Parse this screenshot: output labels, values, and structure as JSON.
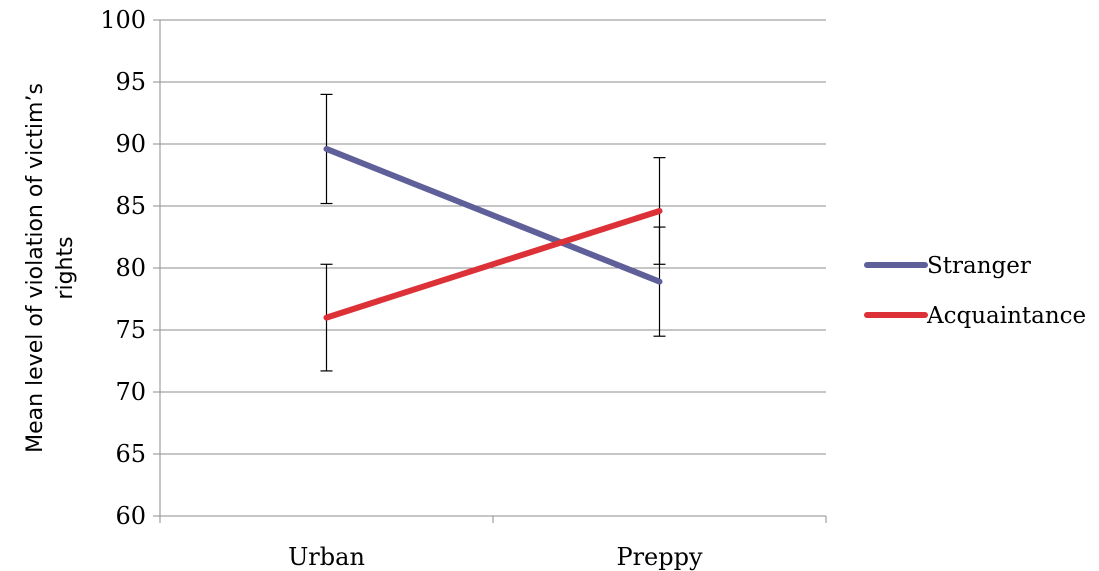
{
  "chart_data": {
    "type": "line",
    "title": "",
    "xlabel": "",
    "ylabel_lines": [
      "Mean level of violation of victim’s",
      "rights"
    ],
    "categories": [
      "Urban",
      "Preppy"
    ],
    "ylim": [
      60,
      100
    ],
    "yticks": [
      60,
      65,
      70,
      75,
      80,
      85,
      90,
      95,
      100
    ],
    "grid": "horizontal",
    "legend_position": "right",
    "series": [
      {
        "name": "Stranger",
        "color": "#5f5f99",
        "values": [
          89.6,
          78.9
        ],
        "errors": [
          4.4,
          4.4
        ]
      },
      {
        "name": "Acquaintance",
        "color": "#dc3237",
        "values": [
          76.0,
          84.6
        ],
        "errors": [
          4.3,
          4.3
        ]
      }
    ]
  }
}
